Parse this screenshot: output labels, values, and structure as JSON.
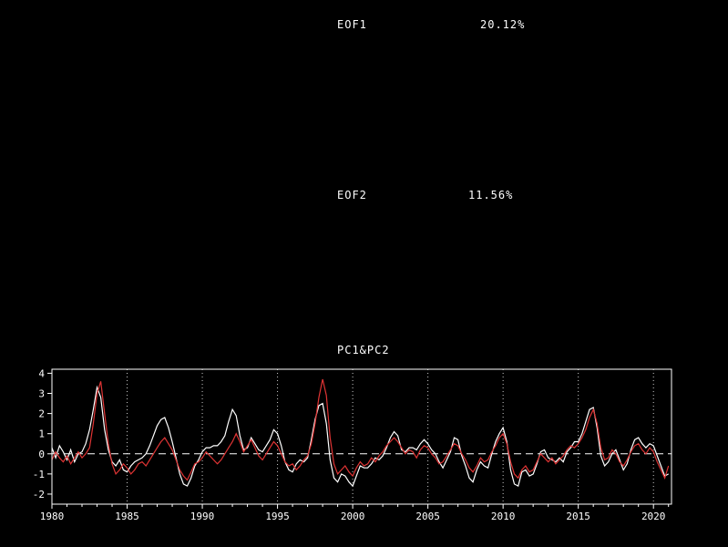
{
  "colors": {
    "background": "#000000",
    "foreground": "#ffffff",
    "grid": "#cccccc",
    "pc1_line": "#ffffff",
    "pc2_line": "#e03434"
  },
  "panels": {
    "eof1": {
      "label": "EOF1",
      "variance": "20.12%"
    },
    "eof2": {
      "label": "EOF2",
      "variance": "11.56%"
    }
  },
  "chart_data": {
    "type": "line",
    "title": "PC1&PC2",
    "xlabel": "",
    "ylabel": "",
    "xlim": [
      1980,
      2021.2
    ],
    "ylim": [
      -2.5,
      4.2
    ],
    "xticks": [
      1980,
      1985,
      1990,
      1995,
      2000,
      2005,
      2010,
      2015,
      2020
    ],
    "yticks": [
      -2,
      -1,
      0,
      1,
      2,
      3,
      4
    ],
    "grid": "vertical-dotted-at-xticks, dashed-zero-line",
    "legend_position": "none",
    "x_start": 1980.0,
    "x_step": 0.25,
    "series": [
      {
        "name": "PC1",
        "color": "#ffffff",
        "values": [
          0.3,
          -0.2,
          0.4,
          0.1,
          -0.3,
          0.2,
          -0.4,
          0.0,
          0.1,
          0.5,
          1.2,
          2.2,
          3.3,
          2.8,
          1.2,
          0.2,
          -0.4,
          -0.6,
          -0.3,
          -0.8,
          -0.9,
          -0.6,
          -0.4,
          -0.3,
          -0.2,
          0.0,
          0.4,
          0.9,
          1.4,
          1.7,
          1.8,
          1.3,
          0.6,
          -0.2,
          -1.0,
          -1.5,
          -1.6,
          -1.2,
          -0.6,
          -0.3,
          0.1,
          0.3,
          0.3,
          0.4,
          0.4,
          0.6,
          0.9,
          1.6,
          2.2,
          1.9,
          0.9,
          0.2,
          0.3,
          0.8,
          0.5,
          0.2,
          0.1,
          0.4,
          0.7,
          1.2,
          1.0,
          0.4,
          -0.4,
          -0.8,
          -0.9,
          -0.5,
          -0.3,
          -0.4,
          -0.2,
          0.7,
          1.7,
          2.4,
          2.5,
          1.5,
          -0.3,
          -1.2,
          -1.4,
          -1.0,
          -1.1,
          -1.4,
          -1.6,
          -1.1,
          -0.6,
          -0.7,
          -0.7,
          -0.5,
          -0.2,
          -0.3,
          -0.1,
          0.3,
          0.8,
          1.1,
          0.9,
          0.2,
          0.1,
          0.3,
          0.3,
          0.2,
          0.5,
          0.7,
          0.5,
          0.2,
          0.0,
          -0.4,
          -0.7,
          -0.3,
          0.1,
          0.8,
          0.7,
          -0.1,
          -0.6,
          -1.2,
          -1.4,
          -0.8,
          -0.4,
          -0.6,
          -0.7,
          0.0,
          0.6,
          1.0,
          1.3,
          0.6,
          -0.8,
          -1.5,
          -1.6,
          -0.9,
          -0.8,
          -1.1,
          -1.0,
          -0.5,
          0.1,
          0.2,
          -0.2,
          -0.3,
          -0.4,
          -0.2,
          -0.4,
          0.1,
          0.3,
          0.6,
          0.6,
          1.0,
          1.6,
          2.2,
          2.3,
          1.3,
          -0.1,
          -0.6,
          -0.4,
          0.0,
          0.2,
          -0.3,
          -0.8,
          -0.5,
          0.2,
          0.7,
          0.8,
          0.5,
          0.3,
          0.5,
          0.4,
          -0.1,
          -0.6,
          -1.1,
          -1.0
        ]
      },
      {
        "name": "PC2",
        "color": "#e03434",
        "values": [
          -0.3,
          0.1,
          -0.2,
          -0.4,
          -0.1,
          -0.5,
          -0.2,
          0.1,
          -0.2,
          0.0,
          0.3,
          1.5,
          3.0,
          3.6,
          2.0,
          0.5,
          -0.5,
          -1.0,
          -0.8,
          -0.5,
          -0.7,
          -1.0,
          -0.8,
          -0.5,
          -0.4,
          -0.6,
          -0.3,
          0.0,
          0.3,
          0.6,
          0.8,
          0.5,
          0.2,
          -0.3,
          -0.8,
          -1.1,
          -1.3,
          -0.9,
          -0.5,
          -0.4,
          -0.2,
          0.1,
          -0.1,
          -0.3,
          -0.5,
          -0.3,
          0.0,
          0.3,
          0.6,
          1.0,
          0.6,
          0.1,
          0.4,
          0.7,
          0.3,
          -0.1,
          -0.3,
          0.0,
          0.3,
          0.6,
          0.4,
          0.0,
          -0.4,
          -0.6,
          -0.5,
          -0.8,
          -0.6,
          -0.3,
          -0.1,
          0.5,
          1.5,
          2.8,
          3.7,
          2.9,
          0.8,
          -0.5,
          -1.0,
          -0.8,
          -0.6,
          -0.9,
          -1.1,
          -0.7,
          -0.4,
          -0.6,
          -0.5,
          -0.2,
          -0.4,
          -0.1,
          0.1,
          0.4,
          0.6,
          0.8,
          0.6,
          0.3,
          0.0,
          0.2,
          0.1,
          -0.2,
          0.2,
          0.4,
          0.3,
          0.0,
          -0.2,
          -0.5,
          -0.4,
          -0.1,
          0.2,
          0.5,
          0.4,
          0.0,
          -0.3,
          -0.7,
          -0.9,
          -0.6,
          -0.2,
          -0.4,
          -0.3,
          0.1,
          0.4,
          0.8,
          1.0,
          0.5,
          -0.4,
          -1.0,
          -1.2,
          -0.8,
          -0.6,
          -0.9,
          -0.8,
          -0.4,
          0.0,
          -0.2,
          -0.4,
          -0.2,
          -0.5,
          -0.3,
          -0.1,
          0.2,
          0.4,
          0.3,
          0.5,
          0.8,
          1.2,
          1.8,
          2.2,
          1.5,
          0.3,
          -0.3,
          -0.2,
          0.2,
          0.0,
          -0.4,
          -0.6,
          -0.3,
          0.1,
          0.4,
          0.5,
          0.2,
          0.0,
          0.3,
          0.1,
          -0.4,
          -0.8,
          -1.2,
          -0.6
        ]
      }
    ]
  }
}
